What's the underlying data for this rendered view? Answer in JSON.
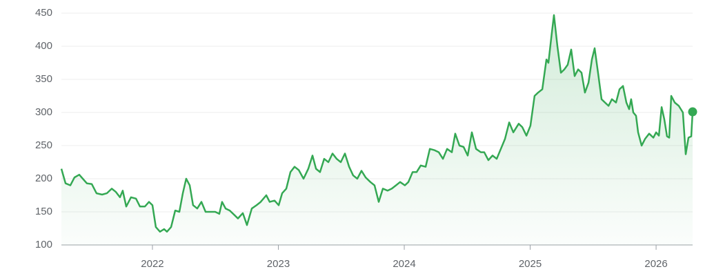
{
  "chart_data": {
    "type": "line",
    "color": "#34a853",
    "grid": true,
    "xlim": [
      2021.277,
      2026.29
    ],
    "xticks": [
      2022,
      2023,
      2024,
      2025,
      2026
    ],
    "ylim": [
      100,
      450
    ],
    "yticks": [
      100,
      150,
      200,
      250,
      300,
      350,
      400,
      450
    ],
    "x": [
      2021.277,
      2021.31,
      2021.348,
      2021.381,
      2021.419,
      2021.447,
      2021.479,
      2021.518,
      2021.556,
      2021.6,
      2021.638,
      2021.677,
      2021.71,
      2021.742,
      2021.764,
      2021.792,
      2021.83,
      2021.869,
      2021.901,
      2021.94,
      2021.973,
      2022.0,
      2022.027,
      2022.06,
      2022.093,
      2022.115,
      2022.148,
      2022.181,
      2022.214,
      2022.241,
      2022.268,
      2022.296,
      2022.323,
      2022.356,
      2022.389,
      2022.422,
      2022.46,
      2022.499,
      2022.531,
      2022.553,
      2022.581,
      2022.614,
      2022.652,
      2022.679,
      2022.718,
      2022.751,
      2022.789,
      2022.827,
      2022.86,
      2022.904,
      2022.931,
      2022.97,
      2023.003,
      2023.03,
      2023.063,
      2023.096,
      2023.129,
      2023.162,
      2023.2,
      2023.238,
      2023.271,
      2023.299,
      2023.331,
      2023.364,
      2023.397,
      2023.43,
      2023.463,
      2023.496,
      2023.529,
      2023.562,
      2023.594,
      2023.627,
      2023.66,
      2023.693,
      2023.731,
      2023.764,
      2023.797,
      2023.83,
      2023.868,
      2023.901,
      2023.934,
      2023.967,
      2024.005,
      2024.033,
      2024.066,
      2024.098,
      2024.131,
      2024.17,
      2024.203,
      2024.241,
      2024.274,
      2024.307,
      2024.34,
      2024.378,
      2024.405,
      2024.438,
      2024.471,
      2024.504,
      2024.537,
      2024.57,
      2024.608,
      2024.635,
      2024.668,
      2024.701,
      2024.734,
      2024.767,
      2024.8,
      2024.833,
      2024.866,
      2024.909,
      2024.937,
      2024.97,
      2025.002,
      2025.035,
      2025.063,
      2025.096,
      2025.129,
      2025.145,
      2025.172,
      2025.189,
      2025.216,
      2025.244,
      2025.271,
      2025.298,
      2025.326,
      2025.353,
      2025.381,
      2025.408,
      2025.435,
      2025.463,
      2025.49,
      2025.512,
      2025.539,
      2025.567,
      2025.594,
      2025.622,
      2025.649,
      2025.682,
      2025.709,
      2025.737,
      2025.764,
      2025.786,
      2025.802,
      2025.819,
      2025.841,
      2025.857,
      2025.885,
      2025.912,
      2025.945,
      2025.978,
      2026.0,
      2026.022,
      2026.044,
      2026.065,
      2026.087,
      2026.104,
      2026.12,
      2026.148,
      2026.18,
      2026.213,
      2026.235,
      2026.257,
      2026.279,
      2026.29
    ],
    "values": [
      215,
      193,
      190,
      202,
      206,
      200,
      193,
      192,
      178,
      176,
      178,
      185,
      180,
      172,
      182,
      158,
      172,
      170,
      158,
      158,
      165,
      160,
      127,
      120,
      124,
      120,
      127,
      152,
      150,
      178,
      200,
      190,
      160,
      155,
      165,
      150,
      150,
      150,
      147,
      165,
      155,
      152,
      145,
      140,
      148,
      130,
      155,
      160,
      165,
      175,
      165,
      167,
      160,
      178,
      185,
      210,
      218,
      213,
      200,
      215,
      235,
      215,
      210,
      230,
      225,
      238,
      230,
      225,
      238,
      218,
      205,
      200,
      212,
      202,
      195,
      190,
      165,
      185,
      182,
      185,
      190,
      195,
      190,
      195,
      210,
      210,
      220,
      218,
      245,
      243,
      240,
      230,
      245,
      240,
      268,
      250,
      248,
      235,
      270,
      245,
      240,
      240,
      228,
      235,
      230,
      245,
      260,
      285,
      270,
      283,
      278,
      265,
      280,
      325,
      330,
      335,
      380,
      375,
      420,
      447,
      400,
      360,
      365,
      372,
      395,
      355,
      365,
      360,
      330,
      345,
      380,
      397,
      360,
      320,
      315,
      310,
      320,
      315,
      335,
      340,
      315,
      305,
      320,
      300,
      295,
      270,
      250,
      260,
      268,
      262,
      270,
      265,
      308,
      290,
      264,
      262,
      325,
      315,
      310,
      300,
      237,
      262,
      264,
      301
    ]
  }
}
